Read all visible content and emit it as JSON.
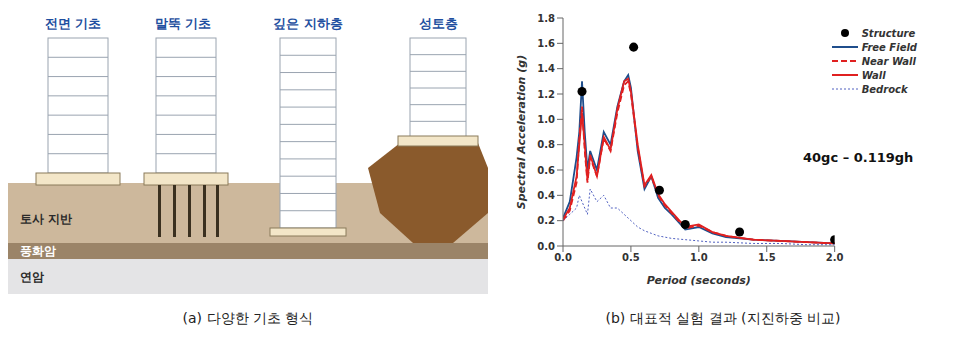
{
  "captions": [
    "(a) 다양한 기초 형식",
    "(b) 대표적 실험 결과 (지진하중 비교)"
  ],
  "diagram": {
    "foundations": [
      {
        "label": "전면 기초"
      },
      {
        "label": "말뚝 기초"
      },
      {
        "label": "깊은 지하층"
      },
      {
        "label": "성토층"
      }
    ],
    "layers": [
      "토사 지반",
      "풍화암",
      "연암"
    ]
  },
  "chart_data": {
    "type": "line",
    "x_label": "Period (seconds)",
    "y_label": "Spectral Acceleration (g)",
    "annotation": "40gc – 0.119gh",
    "legend": "upper right",
    "grid": false,
    "xlim": [
      0,
      2
    ],
    "ylim": [
      0,
      1.8
    ],
    "xticks": [
      {
        "value": 0,
        "label": "0.0"
      },
      0.5,
      {
        "value": 1,
        "label": "1.0"
      },
      1.5,
      {
        "value": 2,
        "label": "2.0"
      }
    ],
    "yticks": [
      {
        "value": 0,
        "label": "0.0"
      },
      0.2,
      0.4,
      0.6,
      0.8,
      {
        "value": 1,
        "label": "1.0"
      },
      1.2,
      1.4,
      1.6,
      1.8
    ],
    "x": [
      0,
      0.05,
      0.1,
      0.12,
      0.14,
      0.16,
      0.18,
      0.2,
      0.25,
      0.3,
      0.35,
      0.4,
      0.45,
      0.48,
      0.5,
      0.55,
      0.6,
      0.65,
      0.7,
      0.75,
      0.8,
      0.9,
      1.0,
      1.1,
      1.2,
      1.4,
      1.6,
      1.8,
      2.0
    ],
    "series": [
      {
        "name": "Structure",
        "type": "scatter",
        "marker": "circle",
        "color": "#000000",
        "x": [
          0.14,
          0.52,
          0.71,
          0.9,
          1.3,
          2.0
        ],
        "values": [
          1.22,
          1.57,
          0.44,
          0.17,
          0.11,
          0.05
        ]
      },
      {
        "name": "Free Field",
        "type": "line",
        "line_style": "solid",
        "color": "#1f4e8c",
        "values": [
          0.22,
          0.35,
          0.7,
          0.9,
          1.3,
          0.9,
          0.6,
          0.75,
          0.6,
          0.9,
          0.8,
          1.1,
          1.3,
          1.35,
          1.25,
          0.75,
          0.45,
          0.55,
          0.38,
          0.3,
          0.25,
          0.13,
          0.15,
          0.1,
          0.07,
          0.05,
          0.04,
          0.03,
          0.02
        ]
      },
      {
        "name": "Near Wall",
        "type": "line",
        "line_style": "dashed",
        "color": "#e02020",
        "values": [
          0.2,
          0.28,
          0.5,
          0.85,
          1.1,
          0.75,
          0.5,
          0.7,
          0.55,
          0.85,
          0.75,
          1.05,
          1.27,
          1.3,
          1.2,
          0.78,
          0.47,
          0.55,
          0.4,
          0.32,
          0.26,
          0.14,
          0.16,
          0.11,
          0.08,
          0.05,
          0.04,
          0.03,
          0.02
        ]
      },
      {
        "name": "Wall",
        "type": "line",
        "line_style": "solid",
        "color": "#e02020",
        "values": [
          0.21,
          0.3,
          0.55,
          0.8,
          1.05,
          0.8,
          0.52,
          0.72,
          0.55,
          0.86,
          0.76,
          1.08,
          1.3,
          1.32,
          1.22,
          0.8,
          0.48,
          0.56,
          0.41,
          0.33,
          0.27,
          0.15,
          0.17,
          0.11,
          0.08,
          0.05,
          0.04,
          0.03,
          0.02
        ]
      },
      {
        "name": "Bedrock",
        "type": "line",
        "line_style": "dotted",
        "color": "#5060c0",
        "values": [
          0.2,
          0.25,
          0.3,
          0.4,
          0.35,
          0.3,
          0.25,
          0.45,
          0.35,
          0.4,
          0.3,
          0.3,
          0.25,
          0.22,
          0.2,
          0.15,
          0.12,
          0.1,
          0.08,
          0.07,
          0.06,
          0.05,
          0.04,
          0.03,
          0.03,
          0.02,
          0.02,
          0.01,
          0.01
        ]
      }
    ]
  }
}
